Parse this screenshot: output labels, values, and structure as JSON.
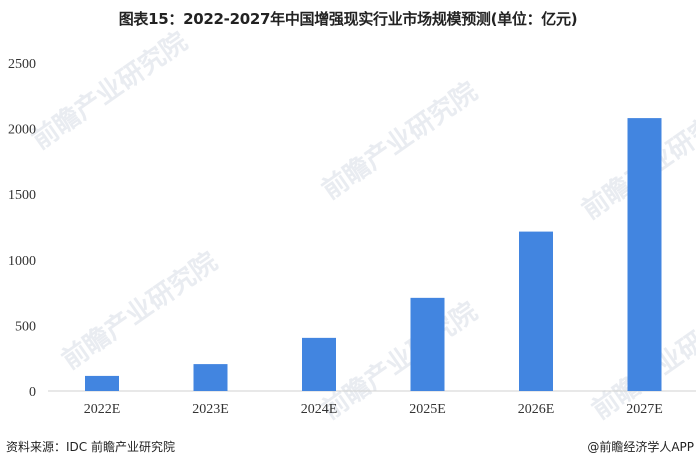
{
  "title": "图表15：2022-2027年中国增强现实行业市场规模预测(单位：亿元)",
  "watermark": "前瞻产业研究院",
  "footer": {
    "source": "资料来源：IDC 前瞻产业研究院",
    "credit": "@前瞻经济学人APP"
  },
  "chart_data": {
    "type": "bar",
    "title": "图表15：2022-2027年中国增强现实行业市场规模预测(单位：亿元)",
    "categories": [
      "2022E",
      "2023E",
      "2024E",
      "2025E",
      "2026E",
      "2027E"
    ],
    "values": [
      115,
      205,
      405,
      710,
      1215,
      2080
    ],
    "yticks": [
      0,
      500,
      1000,
      1500,
      2000,
      2500
    ],
    "ylim": [
      0,
      2500
    ],
    "xlabel": "",
    "ylabel": "",
    "grid": false,
    "bar_color": "#4285e0"
  }
}
